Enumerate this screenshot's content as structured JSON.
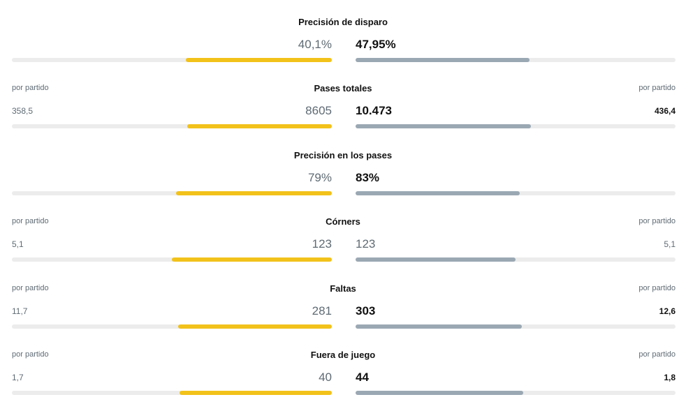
{
  "rows": [
    {
      "title": "Precisión de disparo",
      "home": {
        "value": 40.1,
        "label": "40,1%"
      },
      "away": {
        "value": 47.95,
        "label": "47,95%"
      }
    },
    {
      "title": "Pases totales",
      "home": {
        "value": 8605,
        "label": "8605"
      },
      "away": {
        "value": 10473,
        "label": "10.473"
      },
      "home_per_match": {
        "value": 358.5,
        "label": "358,5"
      },
      "away_per_match": {
        "value": 436.4,
        "label": "436,4"
      },
      "home_per_match_caption": "por partido",
      "away_per_match_caption": "por partido"
    },
    {
      "title": "Precisión en los pases",
      "home": {
        "value": 79,
        "label": "79%"
      },
      "away": {
        "value": 83,
        "label": "83%"
      }
    },
    {
      "title": "Córners",
      "home": {
        "value": 123,
        "label": "123"
      },
      "away": {
        "value": 123,
        "label": "123"
      },
      "home_per_match": {
        "value": 5.1,
        "label": "5,1"
      },
      "away_per_match": {
        "value": 5.1,
        "label": "5,1"
      },
      "home_per_match_caption": "por partido",
      "away_per_match_caption": "por partido"
    },
    {
      "title": "Faltas",
      "home": {
        "value": 281,
        "label": "281"
      },
      "away": {
        "value": 303,
        "label": "303"
      },
      "home_per_match": {
        "value": 11.7,
        "label": "11,7"
      },
      "away_per_match": {
        "value": 12.6,
        "label": "12,6"
      },
      "home_per_match_caption": "por partido",
      "away_per_match_caption": "por partido"
    },
    {
      "title": "Fuera de juego",
      "home": {
        "value": 40,
        "label": "40"
      },
      "away": {
        "value": 44,
        "label": "44"
      },
      "home_per_match": {
        "value": 1.7,
        "label": "1,7"
      },
      "away_per_match": {
        "value": 1.8,
        "label": "1,8"
      },
      "home_per_match_caption": "por partido",
      "away_per_match_caption": "por partido"
    }
  ]
}
